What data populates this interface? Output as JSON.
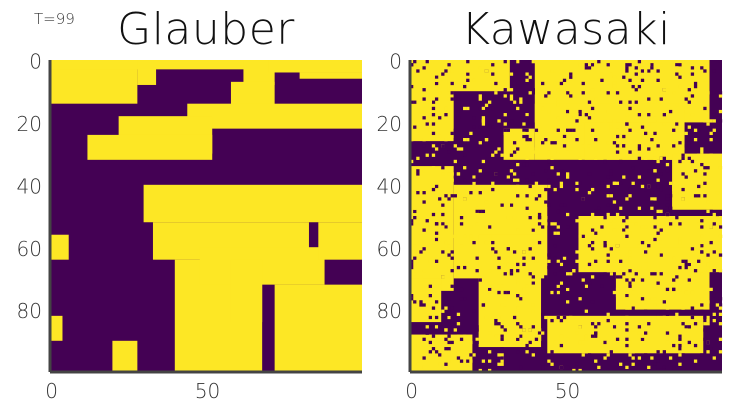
{
  "time_label": "T=99",
  "chart_data": [
    {
      "type": "heatmap",
      "title": "Glauber",
      "grid_size": 100,
      "xlim": [
        0,
        99
      ],
      "ylim": [
        99,
        0
      ],
      "x_ticks": [
        0,
        50
      ],
      "y_ticks": [
        0,
        20,
        40,
        60,
        80
      ],
      "x_tick_labels": [
        "0",
        "50"
      ],
      "y_tick_labels": [
        "0",
        "20",
        "40",
        "60",
        "80"
      ],
      "values_description_only": false,
      "colormap": {
        "low": "#440154",
        "high": "#fde725"
      },
      "regions_high": [
        [
          0,
          0,
          28,
          14
        ],
        [
          0,
          0,
          100,
          3
        ],
        [
          28,
          0,
          6,
          8
        ],
        [
          62,
          0,
          10,
          8
        ],
        [
          70,
          0,
          30,
          4
        ],
        [
          80,
          4,
          20,
          2
        ],
        [
          58,
          7,
          14,
          10
        ],
        [
          44,
          14,
          56,
          8
        ],
        [
          22,
          18,
          30,
          12
        ],
        [
          12,
          24,
          40,
          8
        ],
        [
          0,
          56,
          6,
          8
        ],
        [
          30,
          40,
          70,
          12
        ],
        [
          33,
          52,
          50,
          12
        ],
        [
          40,
          64,
          28,
          40
        ],
        [
          48,
          60,
          40,
          12
        ],
        [
          72,
          72,
          28,
          28
        ],
        [
          0,
          82,
          4,
          8
        ],
        [
          86,
          52,
          14,
          12
        ],
        [
          20,
          90,
          8,
          10
        ],
        [
          58,
          64,
          10,
          20
        ]
      ]
    },
    {
      "type": "heatmap",
      "title": "Kawasaki",
      "grid_size": 100,
      "xlim": [
        0,
        99
      ],
      "ylim": [
        99,
        0
      ],
      "x_ticks": [
        0,
        50
      ],
      "y_ticks": [
        0,
        20,
        40,
        60,
        80
      ],
      "x_tick_labels": [
        "0",
        "50"
      ],
      "y_tick_labels": [
        "0",
        "20",
        "40",
        "60",
        "80"
      ],
      "colormap": {
        "low": "#440154",
        "high": "#fde725"
      },
      "regions_high": [
        [
          0,
          0,
          14,
          26
        ],
        [
          12,
          0,
          20,
          10
        ],
        [
          40,
          0,
          56,
          20
        ],
        [
          40,
          14,
          48,
          18
        ],
        [
          56,
          20,
          30,
          12
        ],
        [
          0,
          34,
          14,
          40
        ],
        [
          14,
          40,
          30,
          30
        ],
        [
          22,
          56,
          20,
          36
        ],
        [
          0,
          70,
          10,
          14
        ],
        [
          54,
          50,
          46,
          18
        ],
        [
          66,
          60,
          30,
          20
        ],
        [
          44,
          82,
          50,
          12
        ],
        [
          84,
          30,
          16,
          18
        ],
        [
          0,
          88,
          20,
          12
        ],
        [
          30,
          22,
          10,
          10
        ]
      ]
    }
  ]
}
